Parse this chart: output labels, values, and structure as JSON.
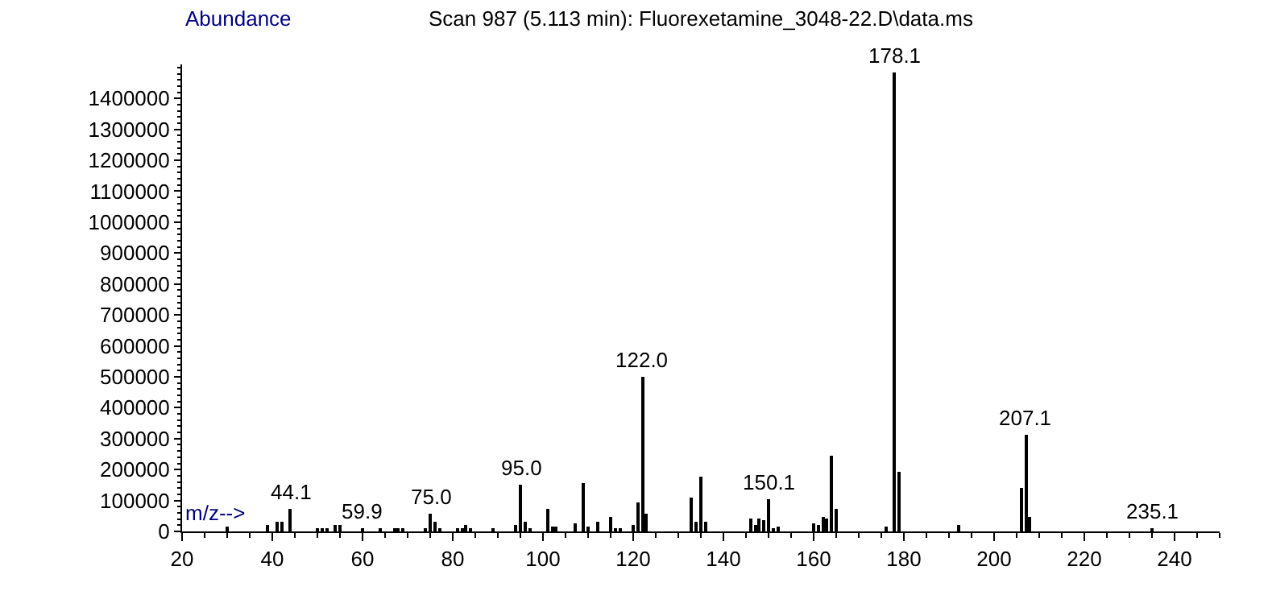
{
  "chart_data": {
    "type": "bar",
    "title": "Scan 987 (5.113 min): Fluorexetamine_3048-22.D\\data.ms",
    "xlabel": "m/z-->",
    "ylabel": "Abundance",
    "x": [
      30,
      39,
      41,
      42,
      44,
      50,
      51,
      52,
      54,
      55,
      60,
      64,
      67,
      68,
      69,
      74,
      75,
      76,
      77,
      81,
      82,
      83,
      84,
      89,
      94,
      95,
      96,
      97,
      101,
      102,
      103,
      107,
      109,
      110,
      112,
      115,
      116,
      117,
      120,
      121,
      122,
      123,
      133,
      134,
      135,
      136,
      146,
      147,
      148,
      149,
      150,
      151,
      152,
      160,
      161,
      162,
      163,
      164,
      165,
      176,
      178,
      179,
      192,
      206,
      207,
      208,
      235
    ],
    "series": [
      {
        "color": "#000000",
        "values": [
          16000,
          21000,
          33000,
          33000,
          71000,
          8000,
          8000,
          8000,
          19000,
          19000,
          8000,
          8000,
          10000,
          10000,
          10000,
          11000,
          57000,
          29000,
          10000,
          8000,
          8000,
          19000,
          13000,
          8000,
          21000,
          149000,
          29000,
          10000,
          71000,
          16000,
          16000,
          24000,
          157000,
          16000,
          29000,
          48000,
          8000,
          8000,
          22000,
          94000,
          498000,
          59000,
          108000,
          33000,
          175000,
          32000,
          41000,
          22000,
          41000,
          35000,
          102000,
          11000,
          17000,
          27000,
          22000,
          46000,
          43000,
          246000,
          75000,
          17000,
          1485000,
          194000,
          22000,
          141000,
          313000,
          46000,
          8000
        ]
      }
    ],
    "annotations": [
      {
        "text": "44.1",
        "x": 44.1,
        "y": 71000
      },
      {
        "text": "59.9",
        "x": 59.9,
        "y": 8000
      },
      {
        "text": "75.0",
        "x": 75.0,
        "y": 57000
      },
      {
        "text": "95.0",
        "x": 95.0,
        "y": 149000
      },
      {
        "text": "122.0",
        "x": 122.0,
        "y": 498000
      },
      {
        "text": "150.1",
        "x": 150.1,
        "y": 102000
      },
      {
        "text": "178.1",
        "x": 178.1,
        "y": 1485000
      },
      {
        "text": "207.1",
        "x": 207.1,
        "y": 313000
      },
      {
        "text": "235.1",
        "x": 235.1,
        "y": 8000
      }
    ],
    "xlim": [
      20,
      250
    ],
    "xticks": [
      20,
      40,
      60,
      80,
      100,
      120,
      140,
      160,
      180,
      200,
      220,
      240
    ],
    "ylim": [
      0,
      1510000
    ],
    "yticks": [
      0,
      100000,
      200000,
      300000,
      400000,
      500000,
      600000,
      700000,
      800000,
      900000,
      1000000,
      1100000,
      1200000,
      1300000,
      1400000
    ]
  }
}
